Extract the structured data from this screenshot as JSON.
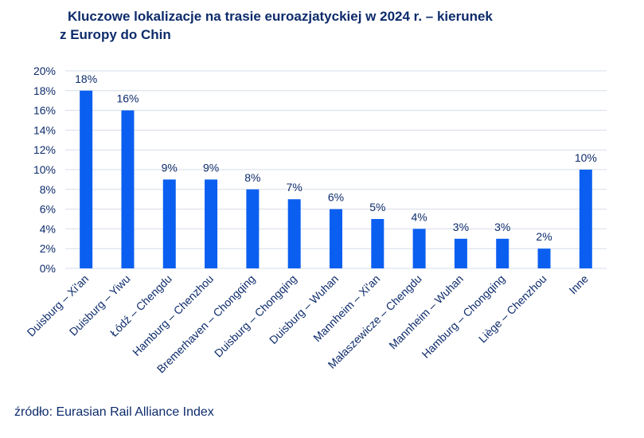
{
  "title_line1": "Kluczowe lokalizacje na trasie euroazjatyckiej w 2024 r. – kierunek",
  "title_line2": "z Europy do Chin",
  "source": "źródło: Eurasian Rail Alliance Index",
  "colors": {
    "bar": "#0b5ff0",
    "text": "#0d2b6b",
    "grid": "#d6dde8"
  },
  "chart_data": {
    "type": "bar",
    "categories": [
      "Duisburg – Xi'an",
      "Duisburg – Yiwu",
      "Łódź – Chengdu",
      "Hamburg – Chenzhou",
      "Bremerhaven – Chongqing",
      "Duisburg – Chongqing",
      "Duisburg – Wuhan",
      "Mannheim – Xi'an",
      "Małaszewicze – Chengdu",
      "Mannheim – Wuhan",
      "Hamburg – Chongqing",
      "Liège – Chenzhou",
      "Inne"
    ],
    "values": [
      18,
      16,
      9,
      9,
      8,
      7,
      6,
      5,
      4,
      3,
      3,
      2,
      10
    ],
    "data_labels": [
      "18%",
      "16%",
      "9%",
      "9%",
      "8%",
      "7%",
      "6%",
      "5%",
      "4%",
      "3%",
      "3%",
      "2%",
      "10%"
    ],
    "yticks": [
      "0%",
      "2%",
      "4%",
      "6%",
      "8%",
      "10%",
      "12%",
      "14%",
      "16%",
      "18%",
      "20%"
    ],
    "ylim": [
      0,
      20
    ],
    "grid": true
  }
}
